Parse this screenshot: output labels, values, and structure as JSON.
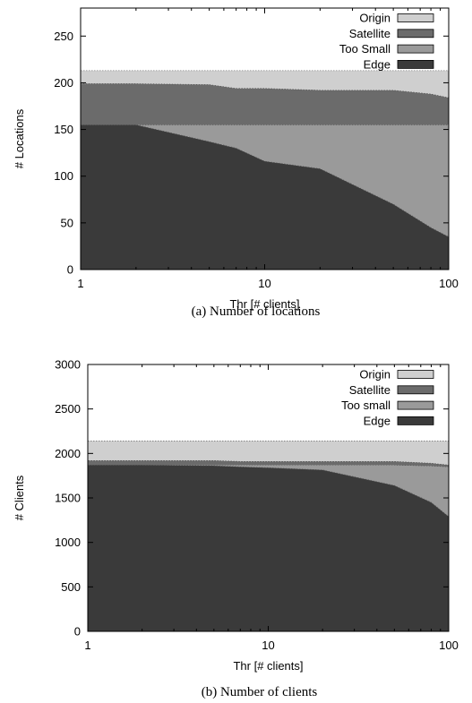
{
  "chart_data": [
    {
      "type": "area",
      "stacked": true,
      "caption": "(a) Number of locations",
      "xlabel": "Thr [# clients]",
      "ylabel": "# Locations",
      "xscale": "log",
      "xlim": [
        1,
        100
      ],
      "ylim": [
        0,
        280
      ],
      "xticks": [
        1,
        10,
        100
      ],
      "yticks": [
        0,
        50,
        100,
        150,
        200,
        250
      ],
      "legend_position": "top-right",
      "x": [
        1,
        2,
        5,
        7,
        10,
        20,
        50,
        80,
        100
      ],
      "series": [
        {
          "name": "Edge",
          "color": "#3a3a3a",
          "values": [
            155,
            155,
            137,
            130,
            116,
            108,
            70,
            45,
            35
          ]
        },
        {
          "name": "Too Small",
          "color": "#9a9a9a",
          "values": [
            0,
            0,
            18,
            25,
            39,
            47,
            85,
            110,
            120
          ]
        },
        {
          "name": "Satellite",
          "color": "#6b6b6b",
          "values": [
            44,
            44,
            43,
            39,
            39,
            37,
            37,
            33,
            29
          ]
        },
        {
          "name": "Origin",
          "color": "#cfcfcf",
          "values": [
            14,
            14,
            15,
            19,
            19,
            21,
            21,
            25,
            29
          ]
        }
      ]
    },
    {
      "type": "area",
      "stacked": true,
      "caption": "(b) Number of clients",
      "xlabel": "Thr [# clients]",
      "ylabel": "# Clients",
      "xscale": "log",
      "xlim": [
        1,
        100
      ],
      "ylim": [
        0,
        3000
      ],
      "xticks": [
        1,
        10,
        100
      ],
      "yticks": [
        0,
        500,
        1000,
        1500,
        2000,
        2500,
        3000
      ],
      "legend_position": "top-right",
      "x": [
        1,
        2,
        5,
        7,
        10,
        20,
        50,
        80,
        100
      ],
      "series": [
        {
          "name": "Edge",
          "color": "#3a3a3a",
          "values": [
            1870,
            1870,
            1862,
            1850,
            1840,
            1815,
            1640,
            1450,
            1290
          ]
        },
        {
          "name": "Too small",
          "color": "#9a9a9a",
          "values": [
            0,
            0,
            8,
            20,
            30,
            55,
            230,
            410,
            560
          ]
        },
        {
          "name": "Satellite",
          "color": "#6b6b6b",
          "values": [
            50,
            50,
            50,
            40,
            40,
            40,
            40,
            30,
            20
          ]
        },
        {
          "name": "Origin",
          "color": "#cfcfcf",
          "values": [
            220,
            220,
            220,
            230,
            230,
            230,
            230,
            250,
            270
          ]
        }
      ]
    }
  ]
}
